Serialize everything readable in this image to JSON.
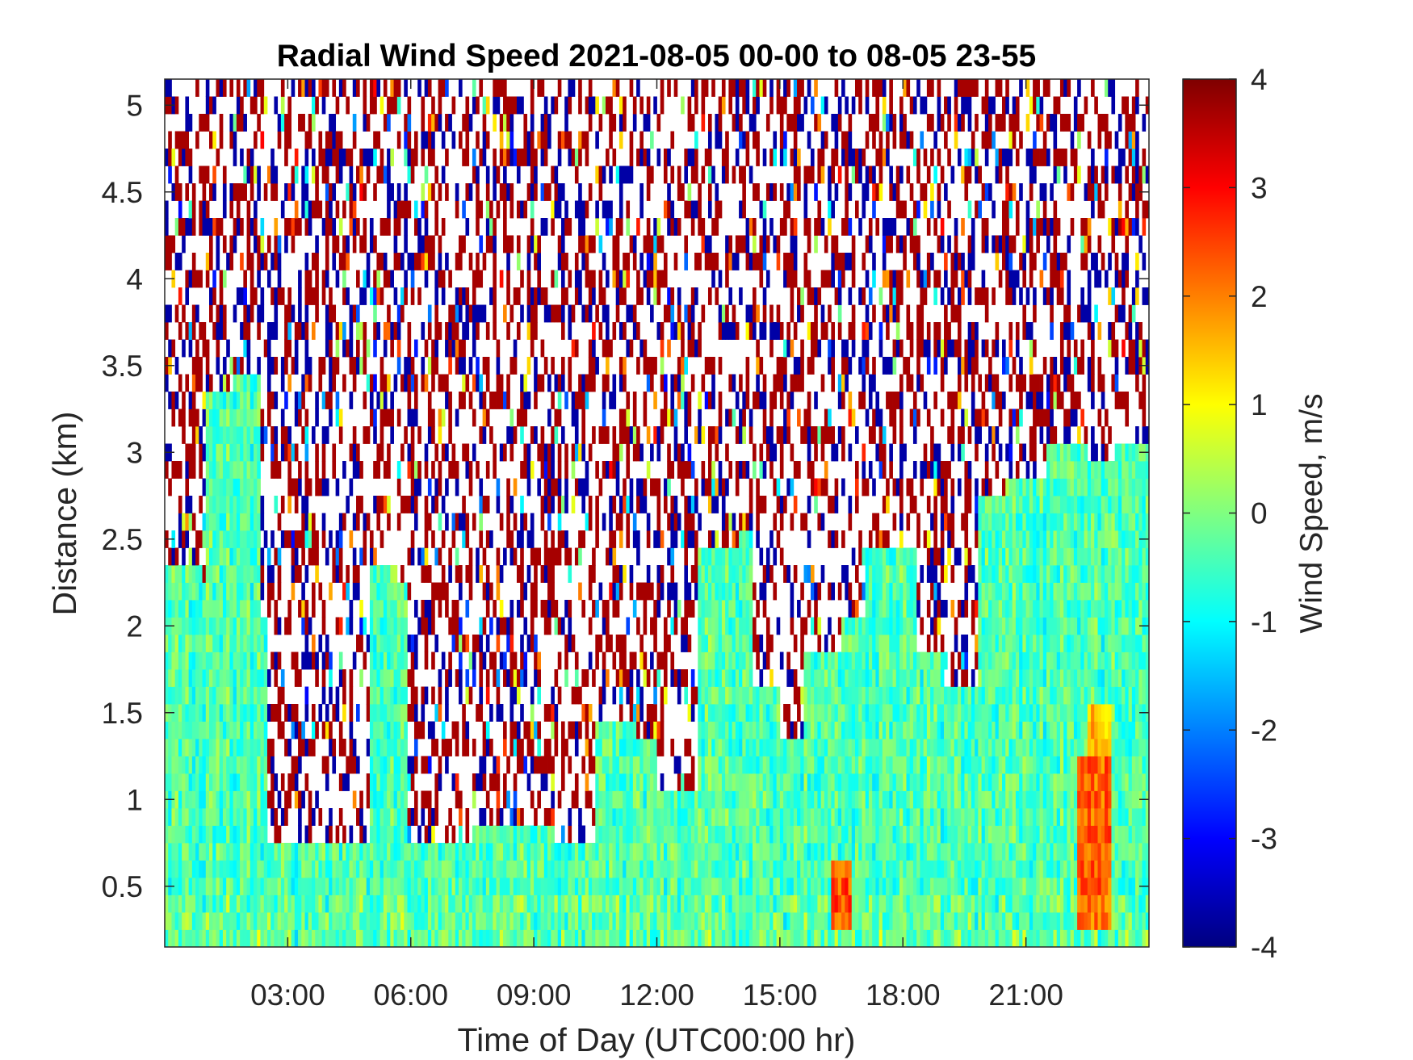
{
  "chart_data": {
    "type": "heatmap",
    "title": "Radial Wind Speed 2021-08-05 00-00 to 08-05 23-55",
    "xlabel": "Time of Day (UTC00:00 hr)",
    "ylabel": "Distance (km)",
    "colorbar_label": "Wind Speed, m/s",
    "x_unit": "hours UTC",
    "xlim": [
      0,
      24
    ],
    "ylim": [
      0.15,
      5.15
    ],
    "clim": [
      -4,
      4
    ],
    "colormap": "jet",
    "x_ticks": [
      {
        "value": 3,
        "label": "03:00"
      },
      {
        "value": 6,
        "label": "06:00"
      },
      {
        "value": 9,
        "label": "09:00"
      },
      {
        "value": 12,
        "label": "12:00"
      },
      {
        "value": 15,
        "label": "15:00"
      },
      {
        "value": 18,
        "label": "18:00"
      },
      {
        "value": 21,
        "label": "21:00"
      }
    ],
    "y_ticks": [
      {
        "value": 0.5,
        "label": "0.5"
      },
      {
        "value": 1,
        "label": "1"
      },
      {
        "value": 1.5,
        "label": "1.5"
      },
      {
        "value": 2,
        "label": "2"
      },
      {
        "value": 2.5,
        "label": "2.5"
      },
      {
        "value": 3,
        "label": "3"
      },
      {
        "value": 3.5,
        "label": "3.5"
      },
      {
        "value": 4,
        "label": "4"
      },
      {
        "value": 4.5,
        "label": "4.5"
      },
      {
        "value": 5,
        "label": "5"
      }
    ],
    "colorbar_ticks": [
      {
        "value": 4,
        "label": "4"
      },
      {
        "value": 3,
        "label": "3"
      },
      {
        "value": 2,
        "label": "2"
      },
      {
        "value": 1,
        "label": "1"
      },
      {
        "value": 0,
        "label": "0"
      },
      {
        "value": -1,
        "label": "-1"
      },
      {
        "value": -2,
        "label": "-2"
      },
      {
        "value": -3,
        "label": "-3"
      },
      {
        "value": -4,
        "label": "-4"
      }
    ],
    "valid_signal_top_km": [
      {
        "x": 0.0,
        "top": 2.3
      },
      {
        "x": 0.9,
        "top": 2.2
      },
      {
        "x": 1.0,
        "top": 3.3
      },
      {
        "x": 1.7,
        "top": 3.4
      },
      {
        "x": 2.3,
        "top": 2.0
      },
      {
        "x": 2.5,
        "top": 0.75
      },
      {
        "x": 4.8,
        "top": 0.75
      },
      {
        "x": 5.0,
        "top": 2.3
      },
      {
        "x": 5.6,
        "top": 2.2
      },
      {
        "x": 5.9,
        "top": 0.7
      },
      {
        "x": 7.5,
        "top": 0.8
      },
      {
        "x": 9.5,
        "top": 0.75
      },
      {
        "x": 10.5,
        "top": 1.4
      },
      {
        "x": 11.5,
        "top": 1.3
      },
      {
        "x": 12.0,
        "top": 1.0
      },
      {
        "x": 12.5,
        "top": 1.0
      },
      {
        "x": 13.0,
        "top": 2.4
      },
      {
        "x": 14.0,
        "top": 2.5
      },
      {
        "x": 14.3,
        "top": 1.6
      },
      {
        "x": 15.0,
        "top": 1.3
      },
      {
        "x": 15.6,
        "top": 1.8
      },
      {
        "x": 16.5,
        "top": 2.0
      },
      {
        "x": 17.1,
        "top": 2.4
      },
      {
        "x": 18.0,
        "top": 2.4
      },
      {
        "x": 18.3,
        "top": 1.8
      },
      {
        "x": 19.0,
        "top": 1.6
      },
      {
        "x": 19.8,
        "top": 2.7
      },
      {
        "x": 20.5,
        "top": 2.8
      },
      {
        "x": 21.5,
        "top": 3.0
      },
      {
        "x": 22.5,
        "top": 2.9
      },
      {
        "x": 23.2,
        "top": 3.0
      },
      {
        "x": 24.0,
        "top": 3.0
      }
    ],
    "hotspots_m_s": [
      {
        "x": [
          16.2,
          16.7
        ],
        "y": [
          0.2,
          0.6
        ],
        "value": 2.4
      },
      {
        "x": [
          22.2,
          23.0
        ],
        "y": [
          0.2,
          1.2
        ],
        "value": 2.2
      },
      {
        "x": [
          22.5,
          23.0
        ],
        "y": [
          1.0,
          1.5
        ],
        "value": 1.5
      }
    ],
    "grid": false
  }
}
